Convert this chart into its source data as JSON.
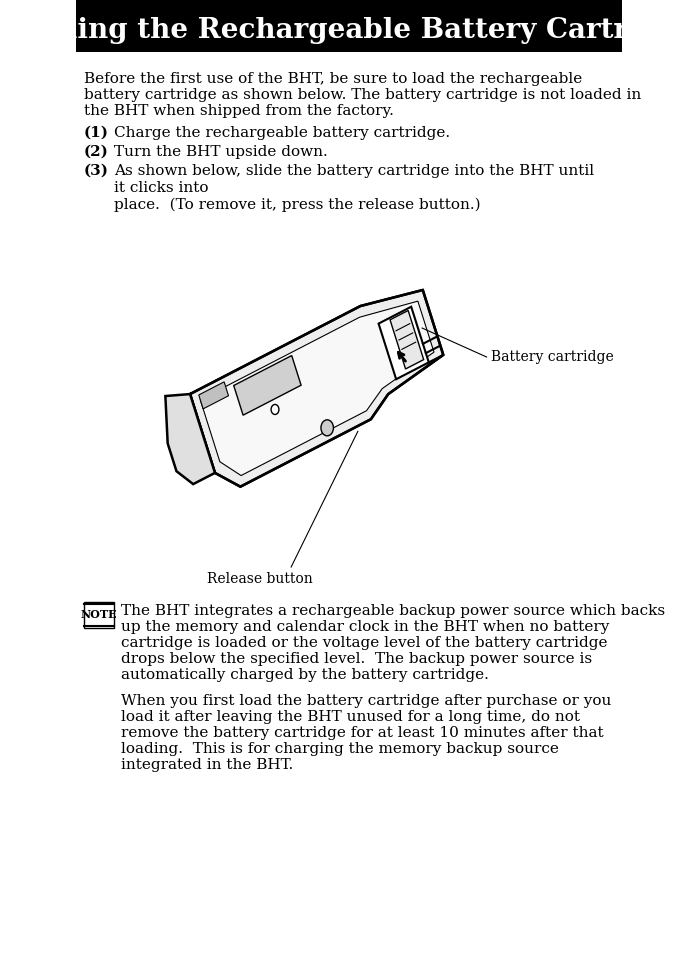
{
  "title": "Loading the Rechargeable Battery Cartridge",
  "title_bg": "#000000",
  "title_fg": "#ffffff",
  "bg_color": "#ffffff",
  "body_color": "#000000",
  "intro_text": "Before the first use of the BHT, be sure to load the rechargeable battery cartridge as shown below. The battery cartridge is not loaded in the BHT when shipped from the factory.",
  "steps": [
    {
      "num": "(1)",
      "text": "Charge the rechargeable battery cartridge."
    },
    {
      "num": "(2)",
      "text": "Turn the BHT upside down."
    },
    {
      "num": "(3)",
      "text": "As shown below, slide the battery cartridge into the BHT until it clicks into\nplace.  (To remove it, press the release button.)"
    }
  ],
  "label_battery": "Battery cartridge",
  "label_release": "Release button",
  "note_text": "The BHT integrates a rechargeable backup power source which backs up the memory and calendar clock in the BHT when no battery cartridge is loaded or the voltage level of the battery cartridge drops below the specified level.  The backup power source is automatically charged by the battery cartridge.",
  "note_text2": "When you first load the battery cartridge after purchase or you load it after leaving the BHT unused for a long time, do not remove the battery cartridge for at least 10 minutes after that loading.  This is for charging the memory backup source integrated in the BHT.",
  "font_family": "serif",
  "title_fontsize": 20,
  "body_fontsize": 11,
  "step_fontsize": 11,
  "note_fontsize": 11
}
